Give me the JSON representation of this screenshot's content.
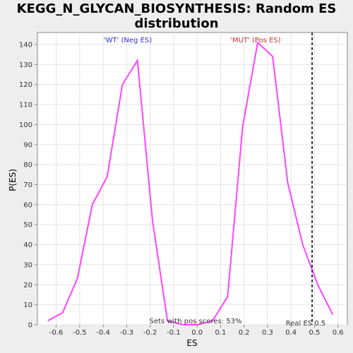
{
  "chart_data": {
    "type": "line",
    "title_lines": [
      "KEGG_N_GLYCAN_BIOSYNTHESIS: Random ES",
      "distribution"
    ],
    "xlabel": "ES",
    "ylabel": "P(ES)",
    "xlim": [
      -0.68,
      0.64
    ],
    "ylim": [
      0,
      146
    ],
    "xticks": [
      -0.6,
      -0.5,
      -0.4,
      -0.3,
      -0.2,
      -0.1,
      0.0,
      0.1,
      0.2,
      0.3,
      0.4,
      0.5,
      0.6
    ],
    "xtick_labels": [
      "-0.6",
      "-0.5",
      "-0.4",
      "-0.3",
      "-0.2",
      "-0.1",
      "0.0",
      "0.1",
      "0.2",
      "0.3",
      "0.4",
      "0.5",
      "0.6"
    ],
    "yticks": [
      0,
      10,
      20,
      30,
      40,
      50,
      60,
      70,
      80,
      90,
      100,
      110,
      120,
      130,
      140
    ],
    "grid": true,
    "series": [
      {
        "color": "#ff44ff",
        "x": [
          -0.636,
          -0.573,
          -0.51,
          -0.446,
          -0.383,
          -0.318,
          -0.254,
          -0.19,
          -0.126,
          -0.062,
          0.002,
          0.066,
          0.13,
          0.194,
          0.258,
          0.322,
          0.386,
          0.45,
          0.514,
          0.578
        ],
        "y": [
          2,
          6,
          23,
          60,
          74,
          120,
          132,
          52,
          2,
          0,
          0,
          2,
          14,
          99,
          141,
          134,
          71,
          40,
          20,
          5
        ]
      }
    ],
    "vline": {
      "x": 0.49,
      "label": "Real ES 0.5",
      "color": "#333333"
    },
    "annotations": [
      {
        "text": "'WT' (Neg ES)",
        "color": "#3333cc"
      },
      {
        "text": "'MUT' (Pos ES)",
        "color": "#cc3333"
      },
      {
        "text": "Sets with pos scores: 53%",
        "color": "#333333"
      }
    ]
  }
}
